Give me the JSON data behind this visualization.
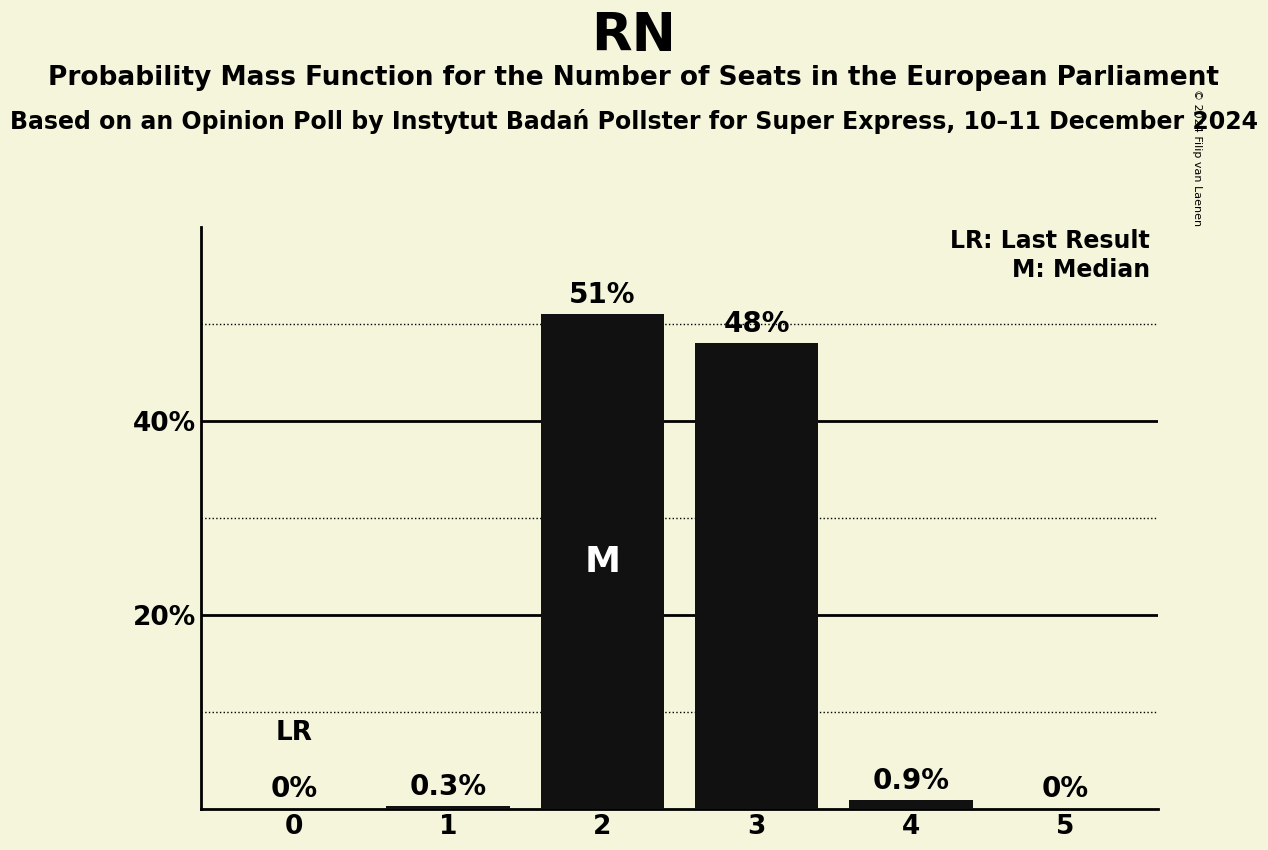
{
  "title": "RN",
  "subtitle1": "Probability Mass Function for the Number of Seats in the European Parliament",
  "subtitle2": "Based on an Opinion Poll by Instytut Badań Pollster for Super Express, 10–11 December 2024",
  "copyright": "© 2024 Filip van Laenen",
  "categories": [
    0,
    1,
    2,
    3,
    4,
    5
  ],
  "values": [
    0.0,
    0.003,
    0.51,
    0.48,
    0.009,
    0.0
  ],
  "bar_color": "#111111",
  "background_color": "#f5f5dc",
  "bar_labels": [
    "0%",
    "0.3%",
    "51%",
    "48%",
    "0.9%",
    "0%"
  ],
  "median_bar": 2,
  "lr_bar": 0,
  "median_label": "M",
  "lr_label": "LR",
  "legend_lr": "LR: Last Result",
  "legend_m": "M: Median",
  "ylim": [
    0,
    0.6
  ],
  "yticks": [
    0.0,
    0.2,
    0.4
  ],
  "ytick_labels": [
    "",
    "20%",
    "40%"
  ],
  "dotted_lines": [
    0.1,
    0.3,
    0.5
  ],
  "solid_lines": [
    0.2,
    0.4
  ],
  "title_fontsize": 38,
  "subtitle1_fontsize": 19,
  "subtitle2_fontsize": 17,
  "bar_label_fontsize": 20,
  "axis_tick_fontsize": 19,
  "legend_fontsize": 17,
  "median_label_fontsize": 26,
  "lr_label_fontsize": 19,
  "copyright_fontsize": 8
}
